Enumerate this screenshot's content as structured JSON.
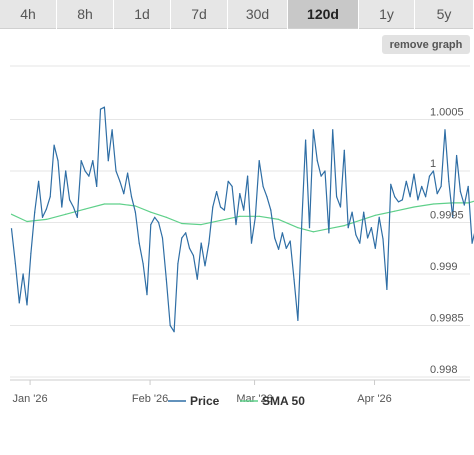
{
  "tabs": [
    {
      "label": "4h",
      "active": false
    },
    {
      "label": "8h",
      "active": false
    },
    {
      "label": "1d",
      "active": false
    },
    {
      "label": "7d",
      "active": false
    },
    {
      "label": "30d",
      "active": false
    },
    {
      "label": "120d",
      "active": true
    },
    {
      "label": "1y",
      "active": false
    },
    {
      "label": "5y",
      "active": false
    }
  ],
  "remove_graph_label": "remove graph",
  "chart_data": {
    "type": "line",
    "ylim": [
      0.998,
      1.0007
    ],
    "y_ticks": [
      {
        "value": 1.0005,
        "label": "1.0005"
      },
      {
        "value": 1.0,
        "label": "1"
      },
      {
        "value": 0.9995,
        "label": "0.9995"
      },
      {
        "value": 0.999,
        "label": "0.999"
      },
      {
        "value": 0.9985,
        "label": "0.9985"
      },
      {
        "value": 0.998,
        "label": "0.998"
      }
    ],
    "x_ticks": [
      {
        "day": 0.8,
        "label": "Jan '26"
      },
      {
        "day": 31.8,
        "label": "Feb '26"
      },
      {
        "day": 58.8,
        "label": "Mar '26"
      },
      {
        "day": 89.8,
        "label": "Apr '26"
      }
    ],
    "x_range_days": [
      -4,
      118
    ],
    "grid": "horizontal",
    "legend_position": "bottom",
    "colors": {
      "price": "#2f6ea5",
      "sma": "#5fd08a",
      "grid": "#e6e6e6",
      "axis": "#cccccc"
    },
    "series": [
      {
        "name": "Price",
        "key": "price",
        "values": [
          {
            "d": -4,
            "v": 0.99944
          },
          {
            "d": -3,
            "v": 0.9991
          },
          {
            "d": -2,
            "v": 0.99872
          },
          {
            "d": -1,
            "v": 0.999
          },
          {
            "d": 0,
            "v": 0.9987
          },
          {
            "d": 1,
            "v": 0.9992
          },
          {
            "d": 2,
            "v": 0.9996
          },
          {
            "d": 3,
            "v": 0.9999
          },
          {
            "d": 4,
            "v": 0.99955
          },
          {
            "d": 5,
            "v": 0.99963
          },
          {
            "d": 6,
            "v": 0.99975
          },
          {
            "d": 7,
            "v": 1.00025
          },
          {
            "d": 8,
            "v": 1.0001
          },
          {
            "d": 9,
            "v": 0.99965
          },
          {
            "d": 10,
            "v": 1.0
          },
          {
            "d": 11,
            "v": 0.99972
          },
          {
            "d": 12,
            "v": 0.99965
          },
          {
            "d": 13,
            "v": 0.99955
          },
          {
            "d": 14,
            "v": 1.0001
          },
          {
            "d": 15,
            "v": 1.0
          },
          {
            "d": 16,
            "v": 0.99995
          },
          {
            "d": 17,
            "v": 1.0001
          },
          {
            "d": 18,
            "v": 0.99985
          },
          {
            "d": 19,
            "v": 1.0006
          },
          {
            "d": 20,
            "v": 1.00062
          },
          {
            "d": 21,
            "v": 1.0001
          },
          {
            "d": 22,
            "v": 1.0004
          },
          {
            "d": 23,
            "v": 1.0
          },
          {
            "d": 24,
            "v": 0.9999
          },
          {
            "d": 25,
            "v": 0.99978
          },
          {
            "d": 26,
            "v": 0.99998
          },
          {
            "d": 27,
            "v": 0.99975
          },
          {
            "d": 28,
            "v": 0.9996
          },
          {
            "d": 29,
            "v": 0.9993
          },
          {
            "d": 30,
            "v": 0.9991
          },
          {
            "d": 31,
            "v": 0.9988
          },
          {
            "d": 32,
            "v": 0.99948
          },
          {
            "d": 33,
            "v": 0.99955
          },
          {
            "d": 34,
            "v": 0.9995
          },
          {
            "d": 35,
            "v": 0.99935
          },
          {
            "d": 36,
            "v": 0.99895
          },
          {
            "d": 37,
            "v": 0.9985
          },
          {
            "d": 38,
            "v": 0.99844
          },
          {
            "d": 39,
            "v": 0.9991
          },
          {
            "d": 40,
            "v": 0.99935
          },
          {
            "d": 41,
            "v": 0.9994
          },
          {
            "d": 42,
            "v": 0.99925
          },
          {
            "d": 43,
            "v": 0.99918
          },
          {
            "d": 44,
            "v": 0.99895
          },
          {
            "d": 45,
            "v": 0.9993
          },
          {
            "d": 46,
            "v": 0.99908
          },
          {
            "d": 47,
            "v": 0.9993
          },
          {
            "d": 48,
            "v": 0.99965
          },
          {
            "d": 49,
            "v": 0.9998
          },
          {
            "d": 50,
            "v": 0.99965
          },
          {
            "d": 51,
            "v": 0.99962
          },
          {
            "d": 52,
            "v": 0.9999
          },
          {
            "d": 53,
            "v": 0.99985
          },
          {
            "d": 54,
            "v": 0.99948
          },
          {
            "d": 55,
            "v": 0.99978
          },
          {
            "d": 56,
            "v": 0.99962
          },
          {
            "d": 57,
            "v": 0.99995
          },
          {
            "d": 58,
            "v": 0.9993
          },
          {
            "d": 59,
            "v": 0.99955
          },
          {
            "d": 60,
            "v": 1.0001
          },
          {
            "d": 61,
            "v": 0.99985
          },
          {
            "d": 62,
            "v": 0.99975
          },
          {
            "d": 63,
            "v": 0.99962
          },
          {
            "d": 64,
            "v": 0.99935
          },
          {
            "d": 65,
            "v": 0.99924
          },
          {
            "d": 66,
            "v": 0.9994
          },
          {
            "d": 67,
            "v": 0.99925
          },
          {
            "d": 68,
            "v": 0.99932
          },
          {
            "d": 69,
            "v": 0.99895
          },
          {
            "d": 70,
            "v": 0.99855
          },
          {
            "d": 71,
            "v": 0.9995
          },
          {
            "d": 72,
            "v": 1.0003
          },
          {
            "d": 73,
            "v": 0.99945
          },
          {
            "d": 74,
            "v": 1.0004
          },
          {
            "d": 75,
            "v": 1.0001
          },
          {
            "d": 76,
            "v": 0.99995
          },
          {
            "d": 77,
            "v": 1.0
          },
          {
            "d": 78,
            "v": 0.9994
          },
          {
            "d": 79,
            "v": 1.0004
          },
          {
            "d": 80,
            "v": 0.99975
          },
          {
            "d": 81,
            "v": 0.99965
          },
          {
            "d": 82,
            "v": 1.0002
          },
          {
            "d": 83,
            "v": 0.99945
          },
          {
            "d": 84,
            "v": 0.9996
          },
          {
            "d": 85,
            "v": 0.99938
          },
          {
            "d": 86,
            "v": 0.9993
          },
          {
            "d": 87,
            "v": 0.9996
          },
          {
            "d": 88,
            "v": 0.99935
          },
          {
            "d": 89,
            "v": 0.99945
          },
          {
            "d": 90,
            "v": 0.99925
          },
          {
            "d": 91,
            "v": 0.99955
          },
          {
            "d": 92,
            "v": 0.99934
          },
          {
            "d": 93,
            "v": 0.99885
          },
          {
            "d": 94,
            "v": 0.99987
          },
          {
            "d": 95,
            "v": 0.99975
          },
          {
            "d": 96,
            "v": 0.9997
          },
          {
            "d": 97,
            "v": 0.99972
          },
          {
            "d": 98,
            "v": 0.9999
          },
          {
            "d": 99,
            "v": 0.99975
          },
          {
            "d": 100,
            "v": 0.99997
          },
          {
            "d": 101,
            "v": 0.99972
          },
          {
            "d": 102,
            "v": 0.99985
          },
          {
            "d": 103,
            "v": 0.99975
          },
          {
            "d": 104,
            "v": 0.99995
          },
          {
            "d": 105,
            "v": 1.0
          },
          {
            "d": 106,
            "v": 0.99978
          },
          {
            "d": 107,
            "v": 0.99985
          },
          {
            "d": 108,
            "v": 1.0004
          },
          {
            "d": 109,
            "v": 0.9999
          },
          {
            "d": 110,
            "v": 0.99955
          },
          {
            "d": 111,
            "v": 1.00015
          },
          {
            "d": 112,
            "v": 0.9998
          },
          {
            "d": 113,
            "v": 0.99967
          },
          {
            "d": 114,
            "v": 0.99985
          },
          {
            "d": 115,
            "v": 0.9993
          },
          {
            "d": 116,
            "v": 0.99945
          },
          {
            "d": 117,
            "v": 0.99965
          },
          {
            "d": 118,
            "v": 0.99985
          },
          {
            "d": 118.5,
            "v": 1.0002
          }
        ]
      },
      {
        "name": "SMA 50",
        "key": "sma",
        "values": [
          {
            "d": -4,
            "v": 0.99958
          },
          {
            "d": 0,
            "v": 0.99951
          },
          {
            "d": 5,
            "v": 0.99953
          },
          {
            "d": 10,
            "v": 0.99958
          },
          {
            "d": 15,
            "v": 0.99963
          },
          {
            "d": 20,
            "v": 0.99968
          },
          {
            "d": 24,
            "v": 0.99968
          },
          {
            "d": 28,
            "v": 0.99966
          },
          {
            "d": 32,
            "v": 0.9996
          },
          {
            "d": 36,
            "v": 0.99955
          },
          {
            "d": 40,
            "v": 0.99949
          },
          {
            "d": 45,
            "v": 0.99948
          },
          {
            "d": 50,
            "v": 0.99952
          },
          {
            "d": 55,
            "v": 0.99956
          },
          {
            "d": 60,
            "v": 0.99956
          },
          {
            "d": 65,
            "v": 0.99953
          },
          {
            "d": 70,
            "v": 0.99945
          },
          {
            "d": 74,
            "v": 0.99941
          },
          {
            "d": 78,
            "v": 0.99944
          },
          {
            "d": 82,
            "v": 0.99947
          },
          {
            "d": 86,
            "v": 0.99952
          },
          {
            "d": 90,
            "v": 0.99957
          },
          {
            "d": 95,
            "v": 0.99961
          },
          {
            "d": 100,
            "v": 0.99965
          },
          {
            "d": 105,
            "v": 0.99968
          },
          {
            "d": 110,
            "v": 0.99969
          },
          {
            "d": 114,
            "v": 0.99969
          },
          {
            "d": 118.5,
            "v": 0.99974
          }
        ]
      }
    ]
  }
}
